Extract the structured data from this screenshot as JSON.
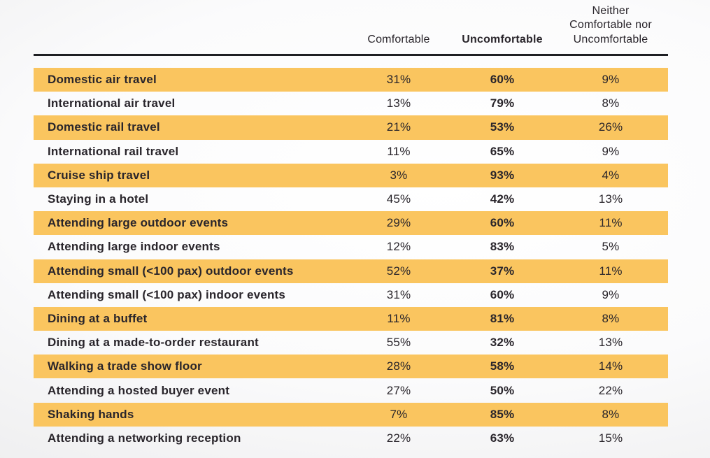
{
  "table": {
    "headers": [
      "Comfortable",
      "Uncomfortable",
      "Neither Comfortable nor Uncomfortable"
    ],
    "rows": [
      {
        "label": "Domestic air travel",
        "values": [
          "31%",
          "60%",
          "9%"
        ]
      },
      {
        "label": "International air travel",
        "values": [
          "13%",
          "79%",
          "8%"
        ]
      },
      {
        "label": "Domestic rail travel",
        "values": [
          "21%",
          "53%",
          "26%"
        ]
      },
      {
        "label": "International rail travel",
        "values": [
          "11%",
          "65%",
          "9%"
        ]
      },
      {
        "label": "Cruise ship travel",
        "values": [
          "3%",
          "93%",
          "4%"
        ]
      },
      {
        "label": "Staying in a hotel",
        "values": [
          "45%",
          "42%",
          "13%"
        ]
      },
      {
        "label": "Attending large outdoor events",
        "values": [
          "29%",
          "60%",
          "11%"
        ]
      },
      {
        "label": "Attending large indoor events",
        "values": [
          "12%",
          "83%",
          "5%"
        ]
      },
      {
        "label": "Attending small (<100 pax) outdoor events",
        "values": [
          "52%",
          "37%",
          "11%"
        ]
      },
      {
        "label": "Attending small (<100 pax) indoor events",
        "values": [
          "31%",
          "60%",
          "9%"
        ]
      },
      {
        "label": "Dining at a buffet",
        "values": [
          "11%",
          "81%",
          "8%"
        ]
      },
      {
        "label": "Dining at a made-to-order restaurant",
        "values": [
          "55%",
          "32%",
          "13%"
        ]
      },
      {
        "label": "Walking a trade show floor",
        "values": [
          "28%",
          "58%",
          "14%"
        ]
      },
      {
        "label": "Attending a hosted buyer event",
        "values": [
          "27%",
          "50%",
          "22%"
        ]
      },
      {
        "label": "Shaking hands",
        "values": [
          "7%",
          "85%",
          "8%"
        ]
      },
      {
        "label": "Attending a networking reception",
        "values": [
          "22%",
          "63%",
          "15%"
        ]
      }
    ]
  },
  "colors": {
    "row_highlight": "#FAC55F",
    "text": "#29252B",
    "header_rule": "#1E1F23"
  },
  "chart_data": {
    "type": "table",
    "title": "",
    "categories": [
      "Domestic air travel",
      "International air travel",
      "Domestic rail travel",
      "International rail travel",
      "Cruise ship travel",
      "Staying in a hotel",
      "Attending large outdoor events",
      "Attending large indoor events",
      "Attending small (<100 pax) outdoor events",
      "Attending small (<100 pax) indoor events",
      "Dining at a buffet",
      "Dining at a made-to-order restaurant",
      "Walking a trade show floor",
      "Attending a hosted buyer event",
      "Shaking hands",
      "Attending a networking reception"
    ],
    "series": [
      {
        "name": "Comfortable",
        "unit": "%",
        "values": [
          31,
          13,
          21,
          11,
          3,
          45,
          29,
          12,
          52,
          31,
          11,
          55,
          28,
          27,
          7,
          22
        ]
      },
      {
        "name": "Uncomfortable",
        "unit": "%",
        "values": [
          60,
          79,
          53,
          65,
          93,
          42,
          60,
          83,
          37,
          60,
          81,
          32,
          58,
          50,
          85,
          63
        ]
      },
      {
        "name": "Neither Comfortable nor Uncomfortable",
        "unit": "%",
        "values": [
          9,
          8,
          26,
          9,
          4,
          13,
          11,
          5,
          11,
          9,
          8,
          13,
          14,
          22,
          8,
          15
        ]
      }
    ]
  }
}
